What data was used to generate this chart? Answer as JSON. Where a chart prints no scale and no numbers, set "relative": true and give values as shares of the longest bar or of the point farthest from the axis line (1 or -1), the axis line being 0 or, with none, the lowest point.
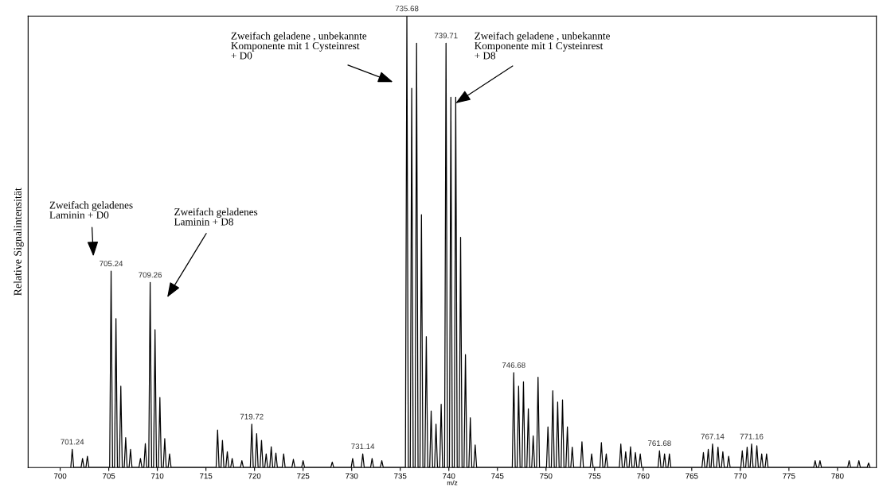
{
  "chart_data": {
    "type": "line",
    "relative": true,
    "xlabel": "m/z",
    "ylabel": "Relative Signalintensität",
    "xlim": [
      696.7,
      784
    ],
    "xticks": [
      700,
      705,
      710,
      715,
      720,
      725,
      730,
      735,
      740,
      745,
      750,
      755,
      760,
      765,
      770,
      775,
      780
    ],
    "grid": false,
    "legend": false,
    "marker": "none",
    "line_style": "solid",
    "annotations": [
      "Zweifach geladenes\nLaminin + D0",
      "Zweifach geladenes\nLaminin + D8",
      "Zweifach geladene , unbekannte\nKomponente mit 1 Cysteinrest\n+ D0",
      "Zweifach geladene , unbekannte\nKomponente mit 1 Cysteinrest\n+ D8",
      {
        "text": "701.24",
        "x": 701.24,
        "y": 0.04
      },
      {
        "text": "705.24",
        "x": 705.24,
        "y": 0.435
      },
      {
        "text": "709.26",
        "x": 709.26,
        "y": 0.41
      },
      {
        "text": "719.72",
        "x": 719.72,
        "y": 0.096
      },
      {
        "text": "731.14",
        "x": 731.14,
        "y": 0.03
      },
      {
        "text": "735.68",
        "x": 735.68,
        "y": 1.0
      },
      {
        "text": "739.71",
        "x": 739.71,
        "y": 0.94
      },
      {
        "text": "746.68",
        "x": 746.68,
        "y": 0.21
      },
      {
        "text": "761.68",
        "x": 761.68,
        "y": 0.037
      },
      {
        "text": "767.14",
        "x": 767.14,
        "y": 0.052
      },
      {
        "text": "771.16",
        "x": 771.16,
        "y": 0.052
      }
    ],
    "series": [
      {
        "color": "#000000",
        "x": [
          701.09,
          701.24,
          701.39,
          702.15,
          702.3,
          702.45,
          702.65,
          702.8,
          702.95,
          705.09,
          705.24,
          705.39,
          705.59,
          705.74,
          705.89,
          706.09,
          706.24,
          706.39,
          706.59,
          706.74,
          706.89,
          707.09,
          707.24,
          707.39,
          708.11,
          708.26,
          708.41,
          708.61,
          708.76,
          708.91,
          709.11,
          709.26,
          709.41,
          709.61,
          709.76,
          709.91,
          710.11,
          710.26,
          710.41,
          710.61,
          710.76,
          710.91,
          711.11,
          711.26,
          711.41,
          716.05,
          716.2,
          716.35,
          716.55,
          716.7,
          716.85,
          717.05,
          717.2,
          717.35,
          717.55,
          717.7,
          717.85,
          718.55,
          718.7,
          718.85,
          719.57,
          719.72,
          719.87,
          720.07,
          720.22,
          720.37,
          720.57,
          720.72,
          720.87,
          721.05,
          721.2,
          721.35,
          721.57,
          721.72,
          721.87,
          722.05,
          722.2,
          722.35,
          722.85,
          723.0,
          723.15,
          723.85,
          724.0,
          724.15,
          724.85,
          725.0,
          725.15,
          727.85,
          728.0,
          728.15,
          729.95,
          730.1,
          730.25,
          730.99,
          731.14,
          731.29,
          731.95,
          732.1,
          732.25,
          732.95,
          733.1,
          733.25,
          735.53,
          735.68,
          735.83,
          736.03,
          736.18,
          736.33,
          736.53,
          736.68,
          736.83,
          737.03,
          737.18,
          737.33,
          737.53,
          737.68,
          737.83,
          738.03,
          738.18,
          738.33,
          738.53,
          738.68,
          738.83,
          739.06,
          739.21,
          739.36,
          739.56,
          739.71,
          739.86,
          740.06,
          740.21,
          740.36,
          740.56,
          740.71,
          740.86,
          741.06,
          741.21,
          741.36,
          741.56,
          741.71,
          741.86,
          742.06,
          742.21,
          742.36,
          742.56,
          742.71,
          742.86,
          746.53,
          746.68,
          746.83,
          747.03,
          747.18,
          747.33,
          747.53,
          747.68,
          747.83,
          748.03,
          748.18,
          748.33,
          748.53,
          748.68,
          748.83,
          749.03,
          749.18,
          749.33,
          750.05,
          750.2,
          750.35,
          750.55,
          750.7,
          750.85,
          751.05,
          751.2,
          751.35,
          751.55,
          751.7,
          751.85,
          752.05,
          752.2,
          752.35,
          752.55,
          752.7,
          752.85,
          753.55,
          753.7,
          753.85,
          754.55,
          754.7,
          754.85,
          755.55,
          755.7,
          755.85,
          756.05,
          756.2,
          756.35,
          757.55,
          757.7,
          757.85,
          758.05,
          758.2,
          758.35,
          758.55,
          758.7,
          758.85,
          759.05,
          759.2,
          759.35,
          759.55,
          759.7,
          759.85,
          761.53,
          761.68,
          761.83,
          762.05,
          762.2,
          762.35,
          762.55,
          762.7,
          762.85,
          766.05,
          766.2,
          766.35,
          766.55,
          766.7,
          766.85,
          766.99,
          767.14,
          767.29,
          767.55,
          767.7,
          767.85,
          768.05,
          768.2,
          768.35,
          768.65,
          768.8,
          768.95,
          770.05,
          770.2,
          770.35,
          770.55,
          770.7,
          770.85,
          771.01,
          771.16,
          771.31,
          771.55,
          771.7,
          771.85,
          772.05,
          772.2,
          772.35,
          772.55,
          772.7,
          772.85,
          777.55,
          777.7,
          777.85,
          778.05,
          778.2,
          778.35,
          781.05,
          781.2,
          781.35,
          782.05,
          782.2,
          782.35,
          783.05,
          783.2,
          783.35
        ],
        "values": [
          0,
          0.04,
          0,
          0,
          0.02,
          0,
          0,
          0.025,
          0,
          0,
          0.435,
          0,
          0,
          0.33,
          0,
          0,
          0.18,
          0,
          0,
          0.066,
          0,
          0,
          0.04,
          0,
          0,
          0.02,
          0,
          0,
          0.053,
          0,
          0,
          0.41,
          0,
          0,
          0.305,
          0,
          0,
          0.155,
          0,
          0,
          0.064,
          0,
          0,
          0.03,
          0,
          0,
          0.083,
          0,
          0,
          0.06,
          0,
          0,
          0.035,
          0,
          0,
          0.02,
          0,
          0,
          0.015,
          0,
          0,
          0.096,
          0,
          0,
          0.075,
          0,
          0,
          0.06,
          0,
          0,
          0.03,
          0,
          0,
          0.046,
          0,
          0,
          0.032,
          0,
          0,
          0.03,
          0,
          0,
          0.018,
          0,
          0,
          0.015,
          0,
          0,
          0.012,
          0,
          0,
          0.02,
          0,
          0,
          0.03,
          0,
          0,
          0.02,
          0,
          0,
          0.015,
          0,
          0,
          1.0,
          0,
          0,
          0.84,
          0,
          0,
          0.94,
          0,
          0,
          0.56,
          0,
          0,
          0.29,
          0,
          0,
          0.125,
          0,
          0,
          0.096,
          0,
          0,
          0.14,
          0,
          0,
          0.94,
          0,
          0,
          0.82,
          0,
          0,
          0.82,
          0,
          0,
          0.51,
          0,
          0,
          0.25,
          0,
          0,
          0.11,
          0,
          0,
          0.05,
          0,
          0,
          0.21,
          0,
          0,
          0.18,
          0,
          0,
          0.19,
          0,
          0,
          0.13,
          0,
          0,
          0.07,
          0,
          0,
          0.2,
          0,
          0,
          0.09,
          0,
          0,
          0.17,
          0,
          0,
          0.145,
          0,
          0,
          0.15,
          0,
          0,
          0.09,
          0,
          0,
          0.045,
          0,
          0,
          0.057,
          0,
          0,
          0.03,
          0,
          0,
          0.055,
          0,
          0,
          0.03,
          0,
          0,
          0.052,
          0,
          0,
          0.035,
          0,
          0,
          0.046,
          0,
          0,
          0.033,
          0,
          0,
          0.03,
          0,
          0,
          0.037,
          0,
          0,
          0.03,
          0,
          0,
          0.03,
          0,
          0,
          0.033,
          0,
          0,
          0.04,
          0,
          0,
          0.052,
          0,
          0,
          0.045,
          0,
          0,
          0.035,
          0,
          0,
          0.025,
          0,
          0,
          0.037,
          0,
          0,
          0.045,
          0,
          0,
          0.052,
          0,
          0,
          0.048,
          0,
          0,
          0.03,
          0,
          0,
          0.03,
          0,
          0,
          0.015,
          0,
          0,
          0.015,
          0,
          0,
          0.015,
          0,
          0,
          0.015,
          0,
          0,
          0.01,
          0
        ]
      }
    ]
  }
}
